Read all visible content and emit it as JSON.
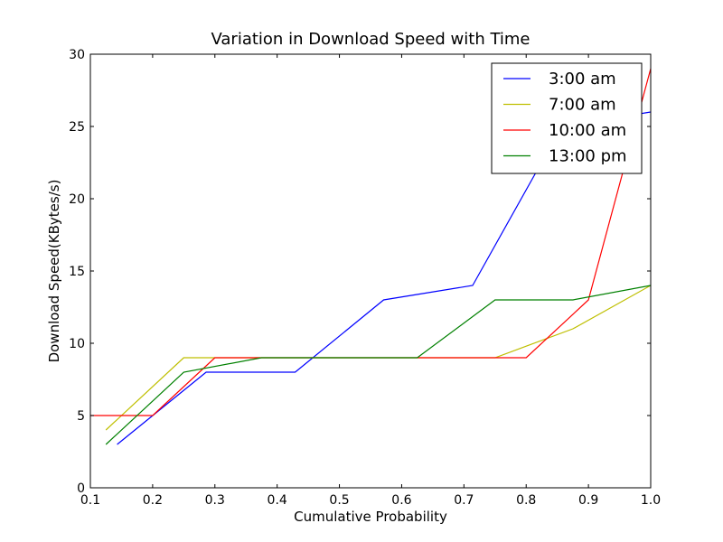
{
  "chart_data": {
    "type": "line",
    "title": "Variation in Download Speed with Time",
    "xlabel": "Cumulative Probability",
    "ylabel": "Download Speed(KBytes/s)",
    "xlim": [
      0.1,
      1.0
    ],
    "ylim": [
      0,
      30
    ],
    "xticks": [
      "0.1",
      "0.2",
      "0.3",
      "0.4",
      "0.5",
      "0.6",
      "0.7",
      "0.8",
      "0.9",
      "1.0"
    ],
    "yticks": [
      "0",
      "5",
      "10",
      "15",
      "20",
      "25",
      "30"
    ],
    "grid": false,
    "legend_position": "top-right",
    "series": [
      {
        "name": "3:00 am",
        "color": "#0000ff",
        "x": [
          0.143,
          0.286,
          0.429,
          0.571,
          0.714,
          0.857,
          1.0
        ],
        "y": [
          3,
          8,
          8,
          13,
          14,
          25,
          26
        ]
      },
      {
        "name": "7:00 am",
        "color": "#bfbf00",
        "x": [
          0.125,
          0.25,
          0.375,
          0.5,
          0.625,
          0.75,
          0.875,
          1.0
        ],
        "y": [
          4,
          9,
          9,
          9,
          9,
          9,
          11,
          14
        ]
      },
      {
        "name": "10:00 am",
        "color": "#ff0000",
        "x": [
          0.1,
          0.2,
          0.3,
          0.4,
          0.5,
          0.6,
          0.7,
          0.8,
          0.9,
          1.0
        ],
        "y": [
          5,
          5,
          9,
          9,
          9,
          9,
          9,
          9,
          13,
          29
        ]
      },
      {
        "name": "13:00 pm",
        "color": "#008000",
        "x": [
          0.125,
          0.25,
          0.375,
          0.5,
          0.625,
          0.75,
          0.875,
          1.0
        ],
        "y": [
          3,
          8,
          9,
          9,
          9,
          13,
          13,
          14
        ]
      }
    ]
  }
}
